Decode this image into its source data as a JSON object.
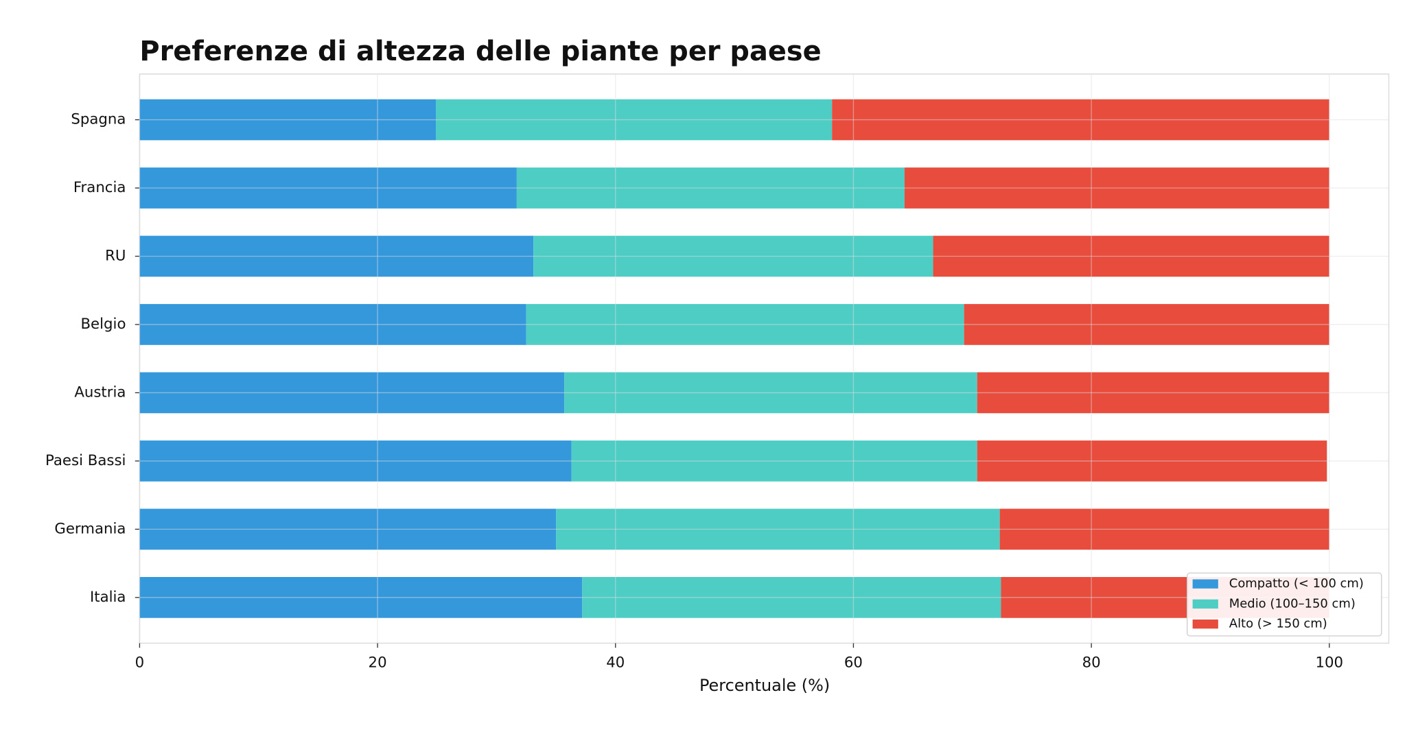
{
  "chart_data": {
    "type": "stacked_barh",
    "title": "Preferenze di altezza delle piante per paese",
    "x_label": "Percentuale (%)",
    "categories": [
      "Spagna",
      "Francia",
      "RU",
      "Belgio",
      "Austria",
      "Paesi Bassi",
      "Germania",
      "Italia"
    ],
    "series": [
      {
        "name": "Compatto (< 100 cm)",
        "color": "#3498db",
        "values": [
          24.9,
          31.7,
          33.1,
          32.5,
          35.7,
          36.3,
          35.0,
          37.2
        ]
      },
      {
        "name": "Medio (100–150 cm)",
        "color": "#4ecdc4",
        "values": [
          33.3,
          32.6,
          33.6,
          36.8,
          34.7,
          34.1,
          37.3,
          35.2
        ]
      },
      {
        "name": "Alto (> 150 cm)",
        "color": "#e74c3c",
        "values": [
          41.8,
          35.7,
          33.3,
          30.7,
          29.6,
          29.4,
          27.7,
          27.6
        ]
      }
    ],
    "xlim": [
      0,
      105
    ],
    "xticks": [
      0,
      20,
      40,
      60,
      80,
      100
    ],
    "grid": true,
    "legend_position": "lower right"
  }
}
